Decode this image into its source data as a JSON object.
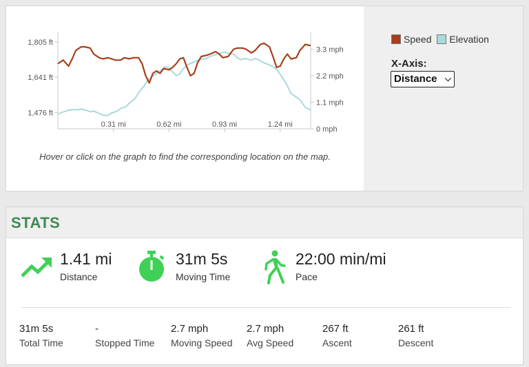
{
  "chart": {
    "legend": [
      {
        "label": "Speed",
        "color": "#a63f1a"
      },
      {
        "label": "Elevation",
        "color": "#a9dadb"
      }
    ],
    "xaxis_label": "X-Axis:",
    "xaxis_selected": "Distance",
    "hint": "Hover or click on the graph to find the corresponding location on the map."
  },
  "chart_data": {
    "type": "line",
    "x_tick_labels": [
      "0.31 mi",
      "0.62 mi",
      "0.93 mi",
      "1.24 mi"
    ],
    "x_ticks": [
      0.31,
      0.62,
      0.93,
      1.24
    ],
    "xlim": [
      0,
      1.41
    ],
    "left_axis": {
      "quantity": "Elevation",
      "tick_labels": [
        "1,805 ft",
        "1,641 ft",
        "1,476 ft"
      ],
      "ticks": [
        1805,
        1641,
        1476
      ],
      "ylim": [
        1400,
        1850
      ]
    },
    "right_axis": {
      "quantity": "Speed",
      "tick_labels": [
        "3.3 mph",
        "2.2 mph",
        "1.1 mph",
        "0 mph"
      ],
      "ticks": [
        3.3,
        2.2,
        1.1,
        0
      ],
      "ylim": [
        0,
        4.0
      ]
    },
    "series": [
      {
        "name": "Speed",
        "axis": "right",
        "color": "#a63f1a",
        "x": [
          0,
          0.03,
          0.06,
          0.08,
          0.1,
          0.13,
          0.15,
          0.18,
          0.2,
          0.23,
          0.25,
          0.28,
          0.3,
          0.32,
          0.35,
          0.37,
          0.4,
          0.42,
          0.45,
          0.47,
          0.49,
          0.51,
          0.53,
          0.55,
          0.57,
          0.59,
          0.62,
          0.64,
          0.66,
          0.68,
          0.7,
          0.72,
          0.74,
          0.76,
          0.78,
          0.8,
          0.83,
          0.85,
          0.88,
          0.9,
          0.92,
          0.95,
          0.98,
          1.0,
          1.03,
          1.05,
          1.08,
          1.1,
          1.13,
          1.15,
          1.18,
          1.2,
          1.22,
          1.24,
          1.26,
          1.28,
          1.3,
          1.33,
          1.35,
          1.38,
          1.41
        ],
        "y": [
          2.7,
          2.85,
          2.6,
          2.9,
          3.25,
          3.4,
          3.4,
          3.35,
          3.1,
          2.95,
          2.9,
          2.95,
          2.9,
          2.85,
          2.85,
          2.95,
          2.9,
          2.95,
          2.95,
          2.7,
          2.2,
          1.9,
          2.3,
          2.4,
          2.3,
          2.5,
          2.45,
          2.55,
          2.7,
          2.9,
          2.95,
          2.55,
          2.2,
          2.3,
          2.75,
          3.0,
          3.05,
          3.1,
          3.2,
          3.1,
          2.95,
          3.0,
          3.3,
          3.35,
          3.35,
          3.3,
          3.15,
          3.25,
          3.5,
          3.55,
          3.4,
          3.0,
          2.55,
          2.6,
          2.9,
          3.1,
          2.9,
          2.95,
          3.25,
          3.5,
          3.45
        ]
      },
      {
        "name": "Elevation",
        "axis": "left",
        "color": "#a9dadb",
        "x": [
          0,
          0.02,
          0.05,
          0.08,
          0.1,
          0.13,
          0.15,
          0.18,
          0.2,
          0.22,
          0.25,
          0.28,
          0.3,
          0.33,
          0.35,
          0.38,
          0.4,
          0.43,
          0.45,
          0.48,
          0.5,
          0.52,
          0.55,
          0.58,
          0.6,
          0.62,
          0.64,
          0.66,
          0.68,
          0.7,
          0.72,
          0.74,
          0.76,
          0.78,
          0.8,
          0.83,
          0.85,
          0.88,
          0.9,
          0.93,
          0.95,
          0.98,
          1.0,
          1.02,
          1.04,
          1.06,
          1.08,
          1.1,
          1.12,
          1.15,
          1.18,
          1.2,
          1.22,
          1.25,
          1.28,
          1.3,
          1.33,
          1.35,
          1.38,
          1.41
        ],
        "y": [
          1468,
          1476,
          1484,
          1490,
          1488,
          1492,
          1488,
          1480,
          1482,
          1476,
          1464,
          1462,
          1474,
          1482,
          1495,
          1503,
          1521,
          1540,
          1568,
          1598,
          1626,
          1640,
          1658,
          1676,
          1690,
          1684,
          1665,
          1648,
          1656,
          1680,
          1698,
          1705,
          1712,
          1718,
          1725,
          1728,
          1738,
          1746,
          1752,
          1758,
          1752,
          1748,
          1732,
          1722,
          1728,
          1725,
          1720,
          1728,
          1722,
          1708,
          1698,
          1690,
          1678,
          1642,
          1600,
          1565,
          1548,
          1536,
          1500,
          1488
        ]
      }
    ]
  },
  "stats": {
    "title": "STATS",
    "primary": [
      {
        "value": "1.41 mi",
        "label": "Distance",
        "icon": "trending-up-icon"
      },
      {
        "value": "31m 5s",
        "label": "Moving Time",
        "icon": "stopwatch-icon"
      },
      {
        "value": "22:00 min/mi",
        "label": "Pace",
        "icon": "walking-person-icon"
      }
    ],
    "secondary": [
      {
        "value": "31m 5s",
        "label": "Total Time"
      },
      {
        "value": "-",
        "label": "Stopped Time"
      },
      {
        "value": "2.7 mph",
        "label": "Moving Speed"
      },
      {
        "value": "2.7 mph",
        "label": "Avg Speed"
      },
      {
        "value": "267 ft",
        "label": "Ascent"
      },
      {
        "value": "261 ft",
        "label": "Descent"
      }
    ],
    "accent_color": "#3fd156"
  }
}
